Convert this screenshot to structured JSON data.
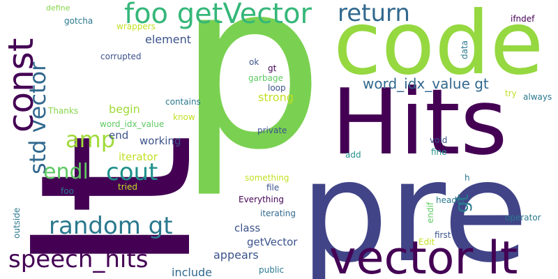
{
  "words": [
    {
      "text": "lt",
      "color": "#440154",
      "rotated": true
    },
    {
      "text": "p",
      "color": "#7ad151",
      "rotated": false
    },
    {
      "text": "pre",
      "color": "#414487",
      "rotated": false
    },
    {
      "text": "Hits",
      "color": "#440154",
      "rotated": false
    },
    {
      "text": "code",
      "color": "#95d840",
      "rotated": false
    },
    {
      "text": "vector lt",
      "color": "#440154",
      "rotated": false
    },
    {
      "text": "foo getVector",
      "color": "#35b779",
      "rotated": false
    },
    {
      "text": "return",
      "color": "#31688e",
      "rotated": false
    },
    {
      "text": "const",
      "color": "#440154",
      "rotated": true
    },
    {
      "text": "std vector",
      "color": "#31688e",
      "rotated": true
    },
    {
      "text": "speech_hits",
      "color": "#440154",
      "rotated": false
    },
    {
      "text": "random gt",
      "color": "#2a788e",
      "rotated": false
    },
    {
      "text": "cout",
      "color": "#21918c",
      "rotated": false
    },
    {
      "text": "endl",
      "color": "#5ec962",
      "rotated": false
    },
    {
      "text": "amp",
      "color": "#a0da39",
      "rotated": false
    },
    {
      "text": "gt",
      "color": "#2a788e",
      "rotated": true
    },
    {
      "text": "word_idx_value gt",
      "color": "#31688e",
      "rotated": false
    },
    {
      "text": "element",
      "color": "#3b528b",
      "rotated": false
    },
    {
      "text": "strong",
      "color": "#c2df23",
      "rotated": false
    },
    {
      "text": "begin",
      "color": "#a0da39",
      "rotated": false
    },
    {
      "text": "end",
      "color": "#3b528b",
      "rotated": false
    },
    {
      "text": "working",
      "color": "#3b528b",
      "rotated": false
    },
    {
      "text": "appears",
      "color": "#3b528b",
      "rotated": false
    },
    {
      "text": "getVector",
      "color": "#3b528b",
      "rotated": false
    },
    {
      "text": "class",
      "color": "#3b528b",
      "rotated": false
    },
    {
      "text": "include",
      "color": "#31688e",
      "rotated": false
    },
    {
      "text": "iterator",
      "color": "#c2df23",
      "rotated": false
    },
    {
      "text": "define",
      "color": "#86d549",
      "rotated": false
    },
    {
      "text": "gotcha",
      "color": "#2a788e",
      "rotated": false
    },
    {
      "text": "wrappers",
      "color": "#c2df23",
      "rotated": false
    },
    {
      "text": "corrupted",
      "color": "#3b528b",
      "rotated": false
    },
    {
      "text": "ok",
      "color": "#3b528b",
      "rotated": false
    },
    {
      "text": "gt",
      "color": "#440154",
      "rotated": false
    },
    {
      "text": "garbage",
      "color": "#5ec962",
      "rotated": false
    },
    {
      "text": "loop",
      "color": "#3b528b",
      "rotated": false
    },
    {
      "text": "contains",
      "color": "#2a788e",
      "rotated": false
    },
    {
      "text": "know",
      "color": "#c2df23",
      "rotated": false
    },
    {
      "text": "Thanks",
      "color": "#86d549",
      "rotated": false
    },
    {
      "text": "word_idx_value",
      "color": "#5ec962",
      "rotated": false
    },
    {
      "text": "private",
      "color": "#3b528b",
      "rotated": false
    },
    {
      "text": "ifndef",
      "color": "#440154",
      "rotated": false
    },
    {
      "text": "data",
      "color": "#2a788e",
      "rotated": true
    },
    {
      "text": "try",
      "color": "#c2df23",
      "rotated": false
    },
    {
      "text": "always",
      "color": "#2a788e",
      "rotated": false
    },
    {
      "text": "void",
      "color": "#3b528b",
      "rotated": false
    },
    {
      "text": "fine",
      "color": "#21918c",
      "rotated": false
    },
    {
      "text": "add",
      "color": "#21918c",
      "rotated": false
    },
    {
      "text": "tried",
      "color": "#c2df23",
      "rotated": false
    },
    {
      "text": "foo",
      "color": "#2a788e",
      "rotated": false
    },
    {
      "text": "outside",
      "color": "#2a788e",
      "rotated": true
    },
    {
      "text": "something",
      "color": "#c2df23",
      "rotated": false
    },
    {
      "text": "file",
      "color": "#3b528b",
      "rotated": false
    },
    {
      "text": "Everything",
      "color": "#440154",
      "rotated": false
    },
    {
      "text": "iterating",
      "color": "#31688e",
      "rotated": false
    },
    {
      "text": "public",
      "color": "#2a788e",
      "rotated": false
    },
    {
      "text": "h",
      "color": "#2a788e",
      "rotated": false
    },
    {
      "text": "header",
      "color": "#2a788e",
      "rotated": false
    },
    {
      "text": "endif",
      "color": "#5ec962",
      "rotated": true
    },
    {
      "text": "first",
      "color": "#3b528b",
      "rotated": false
    },
    {
      "text": "Edit",
      "color": "#c2df23",
      "rotated": false
    },
    {
      "text": "operator",
      "color": "#2a788e",
      "rotated": false
    }
  ]
}
